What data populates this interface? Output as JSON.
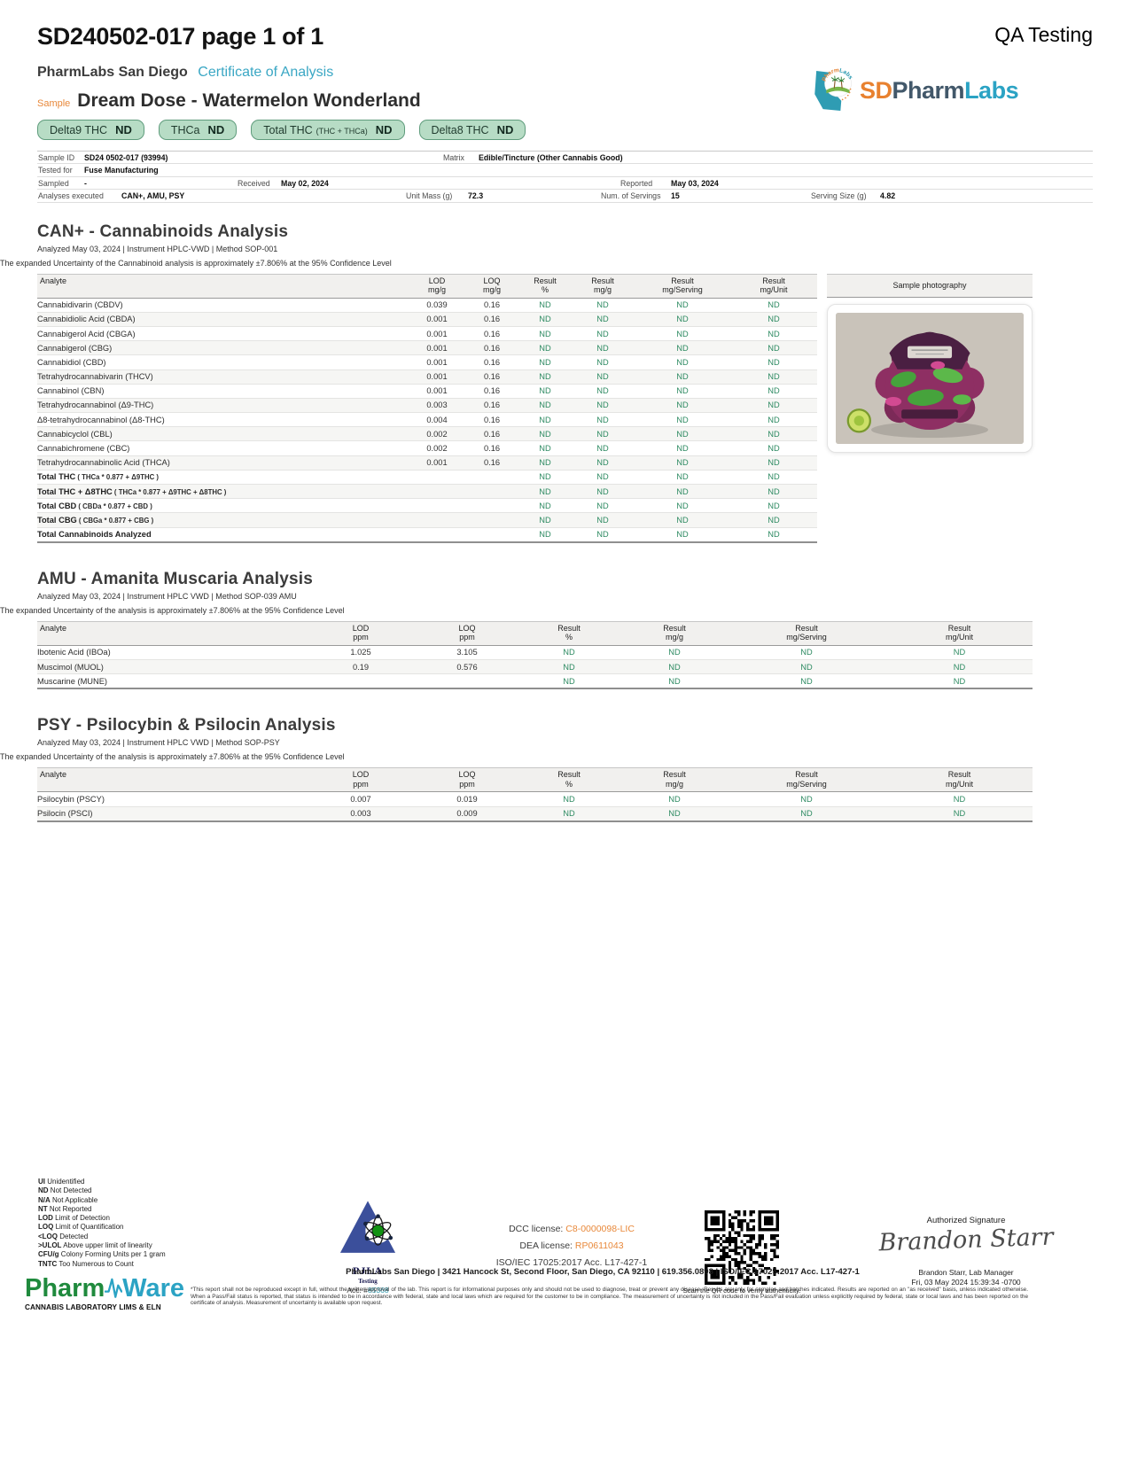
{
  "colors": {
    "accent_teal": "#3aa7c4",
    "accent_orange": "#e8883a",
    "badge_green": "#b7dcc5",
    "nd_green": "#2e8b62"
  },
  "page": {
    "title": "SD240502-017 page 1 of 1",
    "corner": "QA Testing"
  },
  "header": {
    "lab_name": "PharmLabs San Diego",
    "doc_type": "Certificate of Analysis",
    "sample_label": "Sample",
    "sample_name": "Dream Dose - Watermelon Wonderland",
    "badges": [
      {
        "label": "Delta9 THC",
        "sub": "",
        "value": "ND"
      },
      {
        "label": "THCa",
        "sub": "",
        "value": "ND"
      },
      {
        "label": "Total THC",
        "sub": "(THC + THCa)",
        "value": "ND"
      },
      {
        "label": "Delta8 THC",
        "sub": "",
        "value": "ND"
      }
    ],
    "logo": {
      "sd": "SD",
      "pharm": "Pharm",
      "labs": "Labs",
      "arc": "PharmLabs"
    }
  },
  "info": {
    "sample_id_label": "Sample ID",
    "sample_id": "SD24 0502-017 (93994)",
    "matrix_label": "Matrix",
    "matrix": "Edible/Tincture (Other Cannabis Good)",
    "tested_for_label": "Tested for",
    "tested_for": "Fuse Manufacturing",
    "sampled_label": "Sampled",
    "sampled": "-",
    "received_label": "Received",
    "received": "May 02, 2024",
    "reported_label": "Reported",
    "reported": "May 03, 2024",
    "analyses_label": "Analyses executed",
    "analyses": "CAN+, AMU, PSY",
    "unit_mass_label": "Unit Mass (g)",
    "unit_mass": "72.3",
    "servings_label": "Num. of Servings",
    "servings": "15",
    "serving_size_label": "Serving Size (g)",
    "serving_size": "4.82"
  },
  "can": {
    "title": "CAN+ - Cannabinoids Analysis",
    "meta": "Analyzed May 03, 2024   |   Instrument HPLC-VWD  | Method  SOP-001",
    "note": "The expanded Uncertainty of the Cannabinoid analysis is approximately ±7.806% at the 95% Confidence Level",
    "photo_header": "Sample photography",
    "columns": [
      {
        "l1": "Analyte",
        "l2": ""
      },
      {
        "l1": "LOD",
        "l2": "mg/g"
      },
      {
        "l1": "LOQ",
        "l2": "mg/g"
      },
      {
        "l1": "Result",
        "l2": "%"
      },
      {
        "l1": "Result",
        "l2": "mg/g"
      },
      {
        "l1": "Result",
        "l2": "mg/Serving"
      },
      {
        "l1": "Result",
        "l2": "mg/Unit"
      }
    ],
    "rows": [
      {
        "name": "Cannabidivarin (CBDV)",
        "vals": [
          "0.039",
          "0.16",
          "ND",
          "ND",
          "ND",
          "ND"
        ]
      },
      {
        "name": "Cannabidiolic Acid (CBDA)",
        "vals": [
          "0.001",
          "0.16",
          "ND",
          "ND",
          "ND",
          "ND"
        ]
      },
      {
        "name": "Cannabigerol Acid (CBGA)",
        "vals": [
          "0.001",
          "0.16",
          "ND",
          "ND",
          "ND",
          "ND"
        ]
      },
      {
        "name": "Cannabigerol (CBG)",
        "vals": [
          "0.001",
          "0.16",
          "ND",
          "ND",
          "ND",
          "ND"
        ]
      },
      {
        "name": "Cannabidiol (CBD)",
        "vals": [
          "0.001",
          "0.16",
          "ND",
          "ND",
          "ND",
          "ND"
        ]
      },
      {
        "name": "Tetrahydrocannabivarin (THCV)",
        "vals": [
          "0.001",
          "0.16",
          "ND",
          "ND",
          "ND",
          "ND"
        ]
      },
      {
        "name": "Cannabinol (CBN)",
        "vals": [
          "0.001",
          "0.16",
          "ND",
          "ND",
          "ND",
          "ND"
        ]
      },
      {
        "name": "Tetrahydrocannabinol (Δ9-THC)",
        "vals": [
          "0.003",
          "0.16",
          "ND",
          "ND",
          "ND",
          "ND"
        ]
      },
      {
        "name": "Δ8-tetrahydrocannabinol (Δ8-THC)",
        "vals": [
          "0.004",
          "0.16",
          "ND",
          "ND",
          "ND",
          "ND"
        ]
      },
      {
        "name": "Cannabicyclol (CBL)",
        "vals": [
          "0.002",
          "0.16",
          "ND",
          "ND",
          "ND",
          "ND"
        ]
      },
      {
        "name": "Cannabichromene (CBC)",
        "vals": [
          "0.002",
          "0.16",
          "ND",
          "ND",
          "ND",
          "ND"
        ]
      },
      {
        "name": "Tetrahydrocannabinolic Acid (THCA)",
        "vals": [
          "0.001",
          "0.16",
          "ND",
          "ND",
          "ND",
          "ND"
        ]
      },
      {
        "name": "Total THC",
        "formula": "( THCa * 0.877 + Δ9THC )",
        "bold": true,
        "vals": [
          "",
          "",
          "ND",
          "ND",
          "ND",
          "ND"
        ]
      },
      {
        "name": "Total THC + Δ8THC",
        "formula": "( THCa * 0.877 + Δ9THC + Δ8THC )",
        "bold": true,
        "vals": [
          "",
          "",
          "ND",
          "ND",
          "ND",
          "ND"
        ]
      },
      {
        "name": "Total CBD",
        "formula": "( CBDa * 0.877 + CBD )",
        "bold": true,
        "vals": [
          "",
          "",
          "ND",
          "ND",
          "ND",
          "ND"
        ]
      },
      {
        "name": "Total CBG",
        "formula": "( CBGa * 0.877 + CBG )",
        "bold": true,
        "vals": [
          "",
          "",
          "ND",
          "ND",
          "ND",
          "ND"
        ]
      },
      {
        "name": "Total Cannabinoids Analyzed",
        "bold": true,
        "vals": [
          "",
          "",
          "ND",
          "ND",
          "ND",
          "ND"
        ]
      }
    ]
  },
  "amu": {
    "title": "AMU - Amanita Muscaria Analysis",
    "meta": "Analyzed May 03, 2024   |   Instrument HPLC VWD  | Method  SOP-039 AMU",
    "note": "The expanded Uncertainty of the analysis is approximately ±7.806% at the 95% Confidence Level",
    "columns": [
      {
        "l1": "Analyte",
        "l2": ""
      },
      {
        "l1": "LOD",
        "l2": "ppm"
      },
      {
        "l1": "LOQ",
        "l2": "ppm"
      },
      {
        "l1": "Result",
        "l2": "%"
      },
      {
        "l1": "Result",
        "l2": "mg/g"
      },
      {
        "l1": "Result",
        "l2": "mg/Serving"
      },
      {
        "l1": "Result",
        "l2": "mg/Unit"
      }
    ],
    "rows": [
      {
        "name": "Ibotenic Acid (IBOa)",
        "vals": [
          "1.025",
          "3.105",
          "ND",
          "ND",
          "ND",
          "ND"
        ]
      },
      {
        "name": "Muscimol (MUOL)",
        "vals": [
          "0.19",
          "0.576",
          "ND",
          "ND",
          "ND",
          "ND"
        ]
      },
      {
        "name": "Muscarine (MUNE)",
        "vals": [
          "",
          "",
          "ND",
          "ND",
          "ND",
          "ND"
        ]
      }
    ]
  },
  "psy": {
    "title": "PSY - Psilocybin & Psilocin Analysis",
    "meta": "Analyzed May 03, 2024   |   Instrument HPLC VWD  | Method  SOP-PSY",
    "note": "The expanded Uncertainty of the analysis is approximately ±7.806% at the 95% Confidence Level",
    "columns": [
      {
        "l1": "Analyte",
        "l2": ""
      },
      {
        "l1": "LOD",
        "l2": "ppm"
      },
      {
        "l1": "LOQ",
        "l2": "ppm"
      },
      {
        "l1": "Result",
        "l2": "%"
      },
      {
        "l1": "Result",
        "l2": "mg/g"
      },
      {
        "l1": "Result",
        "l2": "mg/Serving"
      },
      {
        "l1": "Result",
        "l2": "mg/Unit"
      }
    ],
    "rows": [
      {
        "name": "Psilocybin (PSCY)",
        "vals": [
          "0.007",
          "0.019",
          "ND",
          "ND",
          "ND",
          "ND"
        ]
      },
      {
        "name": "Psilocin (PSCI)",
        "vals": [
          "0.003",
          "0.009",
          "ND",
          "ND",
          "ND",
          "ND"
        ]
      }
    ]
  },
  "footer": {
    "legend": [
      {
        "abbr": "UI",
        "text": "Unidentified"
      },
      {
        "abbr": "ND",
        "text": "Not Detected"
      },
      {
        "abbr": "N/A",
        "text": "Not Applicable"
      },
      {
        "abbr": "NT",
        "text": "Not Reported"
      },
      {
        "abbr": "LOD",
        "text": "Limit of Detection"
      },
      {
        "abbr": "LOQ",
        "text": "Limit of Quantification"
      },
      {
        "abbr": "<LOQ",
        "text": "Detected"
      },
      {
        "abbr": ">ULOL",
        "text": "Above upper limit of linearity"
      },
      {
        "abbr": "CFU/g",
        "text": "Colony Forming Units per 1 gram"
      },
      {
        "abbr": "TNTC",
        "text": "Too Numerous to Count"
      }
    ],
    "pjla": {
      "name": "PJLA",
      "sub": "Testing",
      "acc_label": "Acc. #",
      "acc": "85368"
    },
    "licenses": {
      "dcc_label": "DCC license:",
      "dcc": "C8-0000098-LIC",
      "dea_label": "DEA license:",
      "dea": "RP0611043",
      "iso": "ISO/IEC 17025:2017  Acc. L17-427-1"
    },
    "qr_caption": "Scan the QR code to verify authenticity.",
    "signature": {
      "heading": "Authorized Signature",
      "script": "Brandon Starr",
      "name_title": "Brandon Starr, Lab Manager",
      "datetime": "Fri, 03 May 2024 15:39:34 -0700"
    },
    "address": "PharmLabs San Diego | 3421 Hancock St, Second Floor, San Diego, CA 92110 | 619.356.0898 | ISO/IEC 17025:2017 Acc. L17-427-1",
    "disclaimer": "*This report shall not be reproduced except in full, without the written approval of the lab. This report is for informational purposes only and should not be used to diagnose, treat or prevent any disease. Results are only for samples and batches indicated. Results are reported on an \"as received\" basis, unless indicated otherwise. When a Pass/Fail status is reported, that status is intended to be in accordance with federal, state and local laws which are required for the customer to be in compliance. The measurement of uncertainty is not included in the Pass/Fail evaluation unless explicitly required by federal, state or local laws and has been reported on the certificate of analysis. Measurement of uncertainty is available upon request.",
    "pharmware": {
      "part1": "Pharm",
      "part2": "Ware",
      "sub": "CANNABIS LABORATORY LIMS & ELN"
    }
  }
}
